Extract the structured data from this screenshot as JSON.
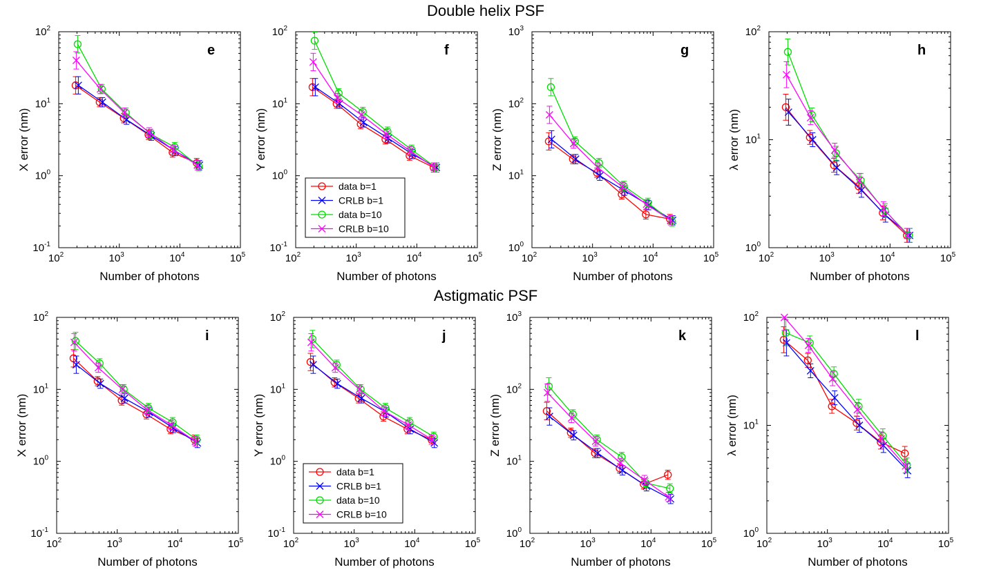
{
  "titles": [
    "Double helix PSF",
    "Astigmatic PSF"
  ],
  "legend": [
    {
      "label": "data b=1",
      "color": "#ff0000",
      "marker": "circle"
    },
    {
      "label": "CRLB b=1",
      "color": "#0000ff",
      "marker": "x"
    },
    {
      "label": "data b=10",
      "color": "#00dd00",
      "marker": "circle"
    },
    {
      "label": "CRLB b=10",
      "color": "#ff00ff",
      "marker": "x"
    }
  ],
  "chart_data": [
    {
      "type": "line",
      "letter": "e",
      "ylabel": "X error (nm)",
      "xlabel": "Number of photons",
      "xscale": "log",
      "yscale": "log",
      "xlim": [
        100,
        100000
      ],
      "ylim": [
        0.1,
        100
      ],
      "x": [
        200,
        500,
        1250,
        3200,
        8000,
        20000
      ],
      "series": [
        {
          "name": "data b=1",
          "values": [
            18,
            10.5,
            6.3,
            3.7,
            2.1,
            1.5
          ]
        },
        {
          "name": "CRLB b=1",
          "values": [
            18,
            10.5,
            6.0,
            3.6,
            2.2,
            1.4
          ]
        },
        {
          "name": "data b=10",
          "values": [
            67,
            16,
            7.5,
            3.8,
            2.5,
            1.35
          ]
        },
        {
          "name": "CRLB b=10",
          "values": [
            40,
            16,
            7.5,
            4.0,
            2.3,
            1.4
          ]
        }
      ]
    },
    {
      "type": "line",
      "letter": "f",
      "ylabel": "Y error (nm)",
      "xlabel": "Number of photons",
      "xscale": "log",
      "yscale": "log",
      "xlim": [
        100,
        100000
      ],
      "ylim": [
        0.1,
        100
      ],
      "legend": true,
      "x": [
        200,
        500,
        1250,
        3200,
        8000,
        20000
      ],
      "series": [
        {
          "name": "data b=1",
          "values": [
            17,
            10,
            5.2,
            3.2,
            1.9,
            1.3
          ]
        },
        {
          "name": "CRLB b=1",
          "values": [
            17,
            10,
            5.5,
            3.3,
            2.0,
            1.3
          ]
        },
        {
          "name": "data b=10",
          "values": [
            75,
            14,
            7.7,
            4.1,
            2.3,
            1.3
          ]
        },
        {
          "name": "CRLB b=10",
          "values": [
            38,
            12,
            7.0,
            3.8,
            2.2,
            1.3
          ]
        }
      ]
    },
    {
      "type": "line",
      "letter": "g",
      "ylabel": "Z error (nm)",
      "xlabel": "Number of photons",
      "xscale": "log",
      "yscale": "log",
      "xlim": [
        100,
        100000
      ],
      "ylim": [
        1,
        1000
      ],
      "x": [
        200,
        500,
        1250,
        3200,
        8000,
        20000
      ],
      "series": [
        {
          "name": "data b=1",
          "values": [
            30,
            17,
            11,
            5.5,
            2.9,
            2.5
          ]
        },
        {
          "name": "CRLB b=1",
          "values": [
            32,
            17,
            10,
            6.2,
            3.9,
            2.4
          ]
        },
        {
          "name": "data b=10",
          "values": [
            170,
            30,
            15,
            7.2,
            4.2,
            2.3
          ]
        },
        {
          "name": "CRLB b=10",
          "values": [
            70,
            28,
            13,
            7.0,
            4.0,
            2.4
          ]
        }
      ]
    },
    {
      "type": "line",
      "letter": "h",
      "ylabel": "λ error (nm)",
      "xlabel": "Number of photons",
      "xscale": "log",
      "yscale": "log",
      "xlim": [
        100,
        100000
      ],
      "ylim": [
        1,
        100
      ],
      "x": [
        200,
        500,
        1250,
        3200,
        8000,
        20000
      ],
      "series": [
        {
          "name": "data b=1",
          "values": [
            20,
            10.5,
            5.8,
            3.7,
            2.1,
            1.3
          ]
        },
        {
          "name": "CRLB b=1",
          "values": [
            18,
            10,
            5.5,
            3.4,
            2.0,
            1.3
          ]
        },
        {
          "name": "data b=10",
          "values": [
            65,
            17,
            7.5,
            4.2,
            2.2,
            1.3
          ]
        },
        {
          "name": "CRLB b=10",
          "values": [
            40,
            16,
            8.0,
            4.2,
            2.3,
            1.3
          ]
        }
      ]
    },
    {
      "type": "line",
      "letter": "i",
      "ylabel": "X error (nm)",
      "xlabel": "Number of photons",
      "xscale": "log",
      "yscale": "log",
      "xlim": [
        100,
        100000
      ],
      "ylim": [
        0.1,
        100
      ],
      "x": [
        200,
        500,
        1250,
        3200,
        8000,
        20000
      ],
      "series": [
        {
          "name": "data b=1",
          "values": [
            27,
            13,
            7.0,
            4.5,
            2.8,
            2.0
          ]
        },
        {
          "name": "CRLB b=1",
          "values": [
            22,
            12,
            7.5,
            4.8,
            2.9,
            1.8
          ]
        },
        {
          "name": "data b=10",
          "values": [
            47,
            23,
            10,
            5.5,
            3.5,
            2.0
          ]
        },
        {
          "name": "CRLB b=10",
          "values": [
            45,
            20,
            10,
            5.2,
            3.2,
            1.9
          ]
        }
      ]
    },
    {
      "type": "line",
      "letter": "j",
      "ylabel": "Y error (nm)",
      "xlabel": "Number of photons",
      "xscale": "log",
      "yscale": "log",
      "xlim": [
        100,
        100000
      ],
      "ylim": [
        0.1,
        100
      ],
      "legend": true,
      "x": [
        200,
        500,
        1250,
        3200,
        8000,
        20000
      ],
      "series": [
        {
          "name": "data b=1",
          "values": [
            24,
            12.5,
            7.5,
            4.2,
            2.8,
            2.0
          ]
        },
        {
          "name": "CRLB b=1",
          "values": [
            22,
            12,
            7.5,
            4.8,
            2.8,
            1.8
          ]
        },
        {
          "name": "data b=10",
          "values": [
            50,
            22,
            10,
            5.5,
            3.5,
            2.2
          ]
        },
        {
          "name": "CRLB b=10",
          "values": [
            45,
            20,
            10,
            5.0,
            3.2,
            2.0
          ]
        }
      ]
    },
    {
      "type": "line",
      "letter": "k",
      "ylabel": "Z error (nm)",
      "xlabel": "Number of photons",
      "xscale": "log",
      "yscale": "log",
      "xlim": [
        100,
        100000
      ],
      "ylim": [
        1,
        1000
      ],
      "x": [
        200,
        500,
        1250,
        3200,
        8000,
        20000
      ],
      "series": [
        {
          "name": "data b=1",
          "values": [
            50,
            25,
            13,
            8.0,
            4.8,
            6.5
          ]
        },
        {
          "name": "CRLB b=1",
          "values": [
            42,
            23,
            13,
            7.5,
            4.5,
            3.0
          ]
        },
        {
          "name": "data b=10",
          "values": [
            110,
            45,
            20,
            11.5,
            5.0,
            4.2
          ]
        },
        {
          "name": "CRLB b=10",
          "values": [
            90,
            40,
            19,
            9.5,
            5.5,
            3.2
          ]
        }
      ]
    },
    {
      "type": "line",
      "letter": "l",
      "ylabel": "λ error (nm)",
      "xlabel": "Number of photons",
      "xscale": "log",
      "yscale": "log",
      "xlim": [
        100,
        100000
      ],
      "ylim": [
        1,
        100
      ],
      "x": [
        200,
        500,
        1250,
        3200,
        8000,
        20000
      ],
      "series": [
        {
          "name": "data b=1",
          "values": [
            62,
            40,
            15,
            10.5,
            7.0,
            5.5
          ]
        },
        {
          "name": "CRLB b=1",
          "values": [
            58,
            32,
            18,
            10,
            6.5,
            3.8
          ]
        },
        {
          "name": "data b=10",
          "values": [
            72,
            58,
            30,
            15,
            8.0,
            4.3
          ]
        },
        {
          "name": "CRLB b=10",
          "values": [
            100,
            55,
            27,
            14,
            7.5,
            4.2
          ]
        }
      ]
    }
  ]
}
